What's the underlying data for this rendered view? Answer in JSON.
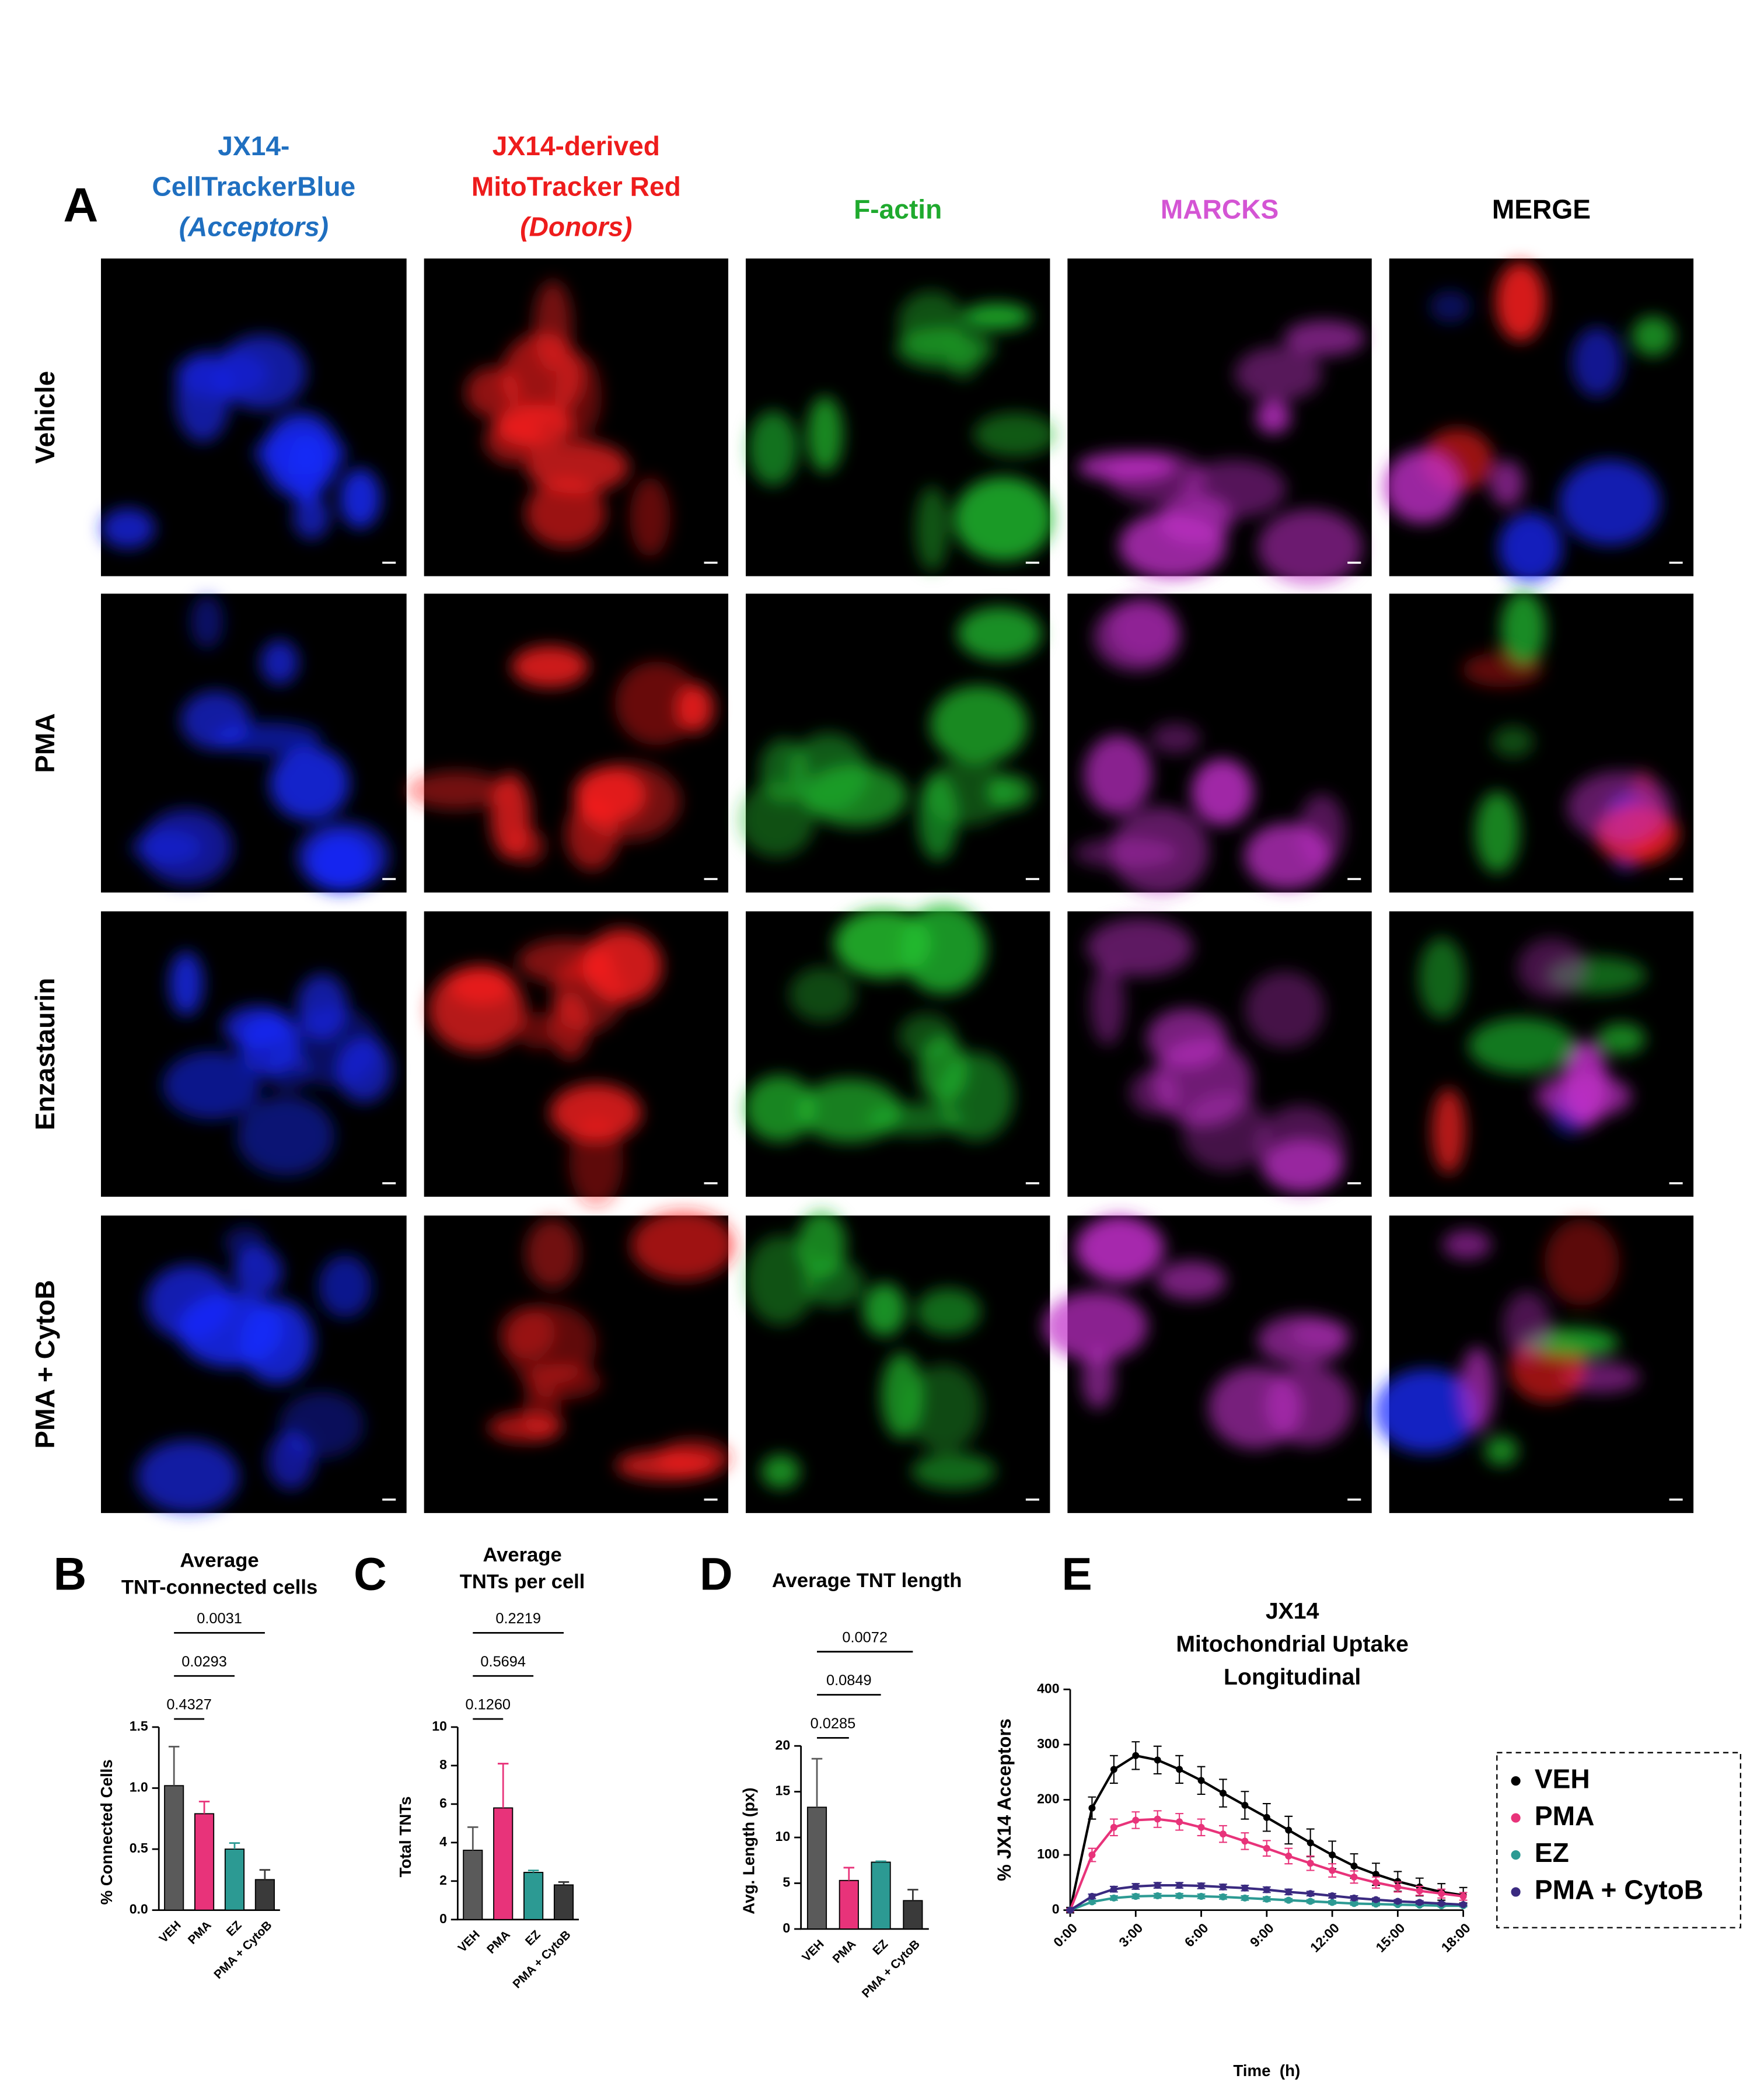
{
  "panel_a": {
    "label": "A",
    "columns": [
      [
        "JX14-",
        "CellTrackerBlue",
        "(Acceptors)"
      ],
      [
        "JX14-derived",
        "MitoTracker Red",
        "(Donors)"
      ],
      [
        "F-actin"
      ],
      [
        "MARCKS"
      ],
      [
        "MERGE"
      ]
    ],
    "column_colors": [
      "#1f6fc0",
      "#ee1c1c",
      "#1faa2e",
      "#d455d4",
      "#000000"
    ],
    "rows": [
      "Vehicle",
      "PMA",
      "Enzastaurin",
      "PMA + CytoB"
    ]
  },
  "chart_data": [
    {
      "type": "bar",
      "panel_label": "B",
      "title": [
        "Average",
        "TNT-connected cells"
      ],
      "y_label": "% Connected Cells",
      "categories": [
        "VEH",
        "PMA",
        "EZ",
        "PMA + CytoB"
      ],
      "values": [
        1.02,
        0.79,
        0.5,
        0.25
      ],
      "errors": [
        0.32,
        0.1,
        0.05,
        0.08
      ],
      "colors": [
        "#5a5a5a",
        "#e8337a",
        "#2c9a93",
        "#3a3a3a"
      ],
      "ylim": [
        0,
        1.5
      ],
      "yticks": [
        {
          "value": 0,
          "label": "0.0"
        },
        {
          "value": 0.5,
          "label": "0.5"
        },
        {
          "value": 1,
          "label": "1.0"
        },
        {
          "value": 1.5,
          "label": "1.5"
        }
      ],
      "annotations": [
        "0.4327",
        "0.0293",
        "0.0031"
      ]
    },
    {
      "type": "bar",
      "panel_label": "C",
      "title": [
        "Average",
        "TNTs per cell"
      ],
      "y_label": "Total TNTs",
      "categories": [
        "VEH",
        "PMA",
        "EZ",
        "PMA + CytoB"
      ],
      "values": [
        3.6,
        5.8,
        2.45,
        1.8
      ],
      "errors": [
        1.2,
        2.3,
        0.1,
        0.15
      ],
      "colors": [
        "#5a5a5a",
        "#e8337a",
        "#2c9a93",
        "#3a3a3a"
      ],
      "ylim": [
        0,
        10
      ],
      "yticks": [
        0,
        2,
        4,
        6,
        8,
        10
      ],
      "annotations": [
        "0.1260",
        "0.5694",
        "0.2219"
      ]
    },
    {
      "type": "bar",
      "panel_label": "D",
      "title": [
        "Average TNT length"
      ],
      "y_label": "Avg. Length (px)",
      "categories": [
        "VEH",
        "PMA",
        "EZ",
        "PMA + CytoB"
      ],
      "values": [
        13.3,
        5.3,
        7.3,
        3.1
      ],
      "errors": [
        5.3,
        1.4,
        0.1,
        1.2
      ],
      "colors": [
        "#5a5a5a",
        "#e8337a",
        "#2c9a93",
        "#3a3a3a"
      ],
      "ylim": [
        0,
        20
      ],
      "yticks": [
        0,
        5,
        10,
        15,
        20
      ],
      "annotations": [
        "0.0285",
        "0.0849",
        "0.0072"
      ]
    },
    {
      "type": "line",
      "panel_label": "E",
      "title": [
        "JX14",
        "Mitochondrial Uptake",
        "Longitudinal"
      ],
      "x_label": "Time  (h)",
      "y_label": "% JX14 Acceptors",
      "x": [
        0,
        1,
        2,
        3,
        4,
        5,
        6,
        7,
        8,
        9,
        10,
        11,
        12,
        13,
        14,
        15,
        16,
        17,
        18
      ],
      "series": [
        {
          "name": "VEH",
          "color": "#000000",
          "values": [
            0,
            185,
            255,
            280,
            272,
            255,
            235,
            212,
            190,
            168,
            145,
            122,
            100,
            80,
            65,
            52,
            42,
            33,
            27
          ],
          "errors": [
            5,
            20,
            25,
            25,
            25,
            25,
            25,
            25,
            25,
            25,
            25,
            25,
            25,
            22,
            20,
            18,
            16,
            15,
            14
          ]
        },
        {
          "name": "PMA",
          "color": "#e8337a",
          "values": [
            0,
            100,
            150,
            163,
            165,
            160,
            150,
            138,
            125,
            112,
            98,
            85,
            72,
            60,
            50,
            42,
            35,
            30,
            25
          ],
          "errors": [
            3,
            12,
            15,
            15,
            15,
            15,
            15,
            15,
            15,
            14,
            14,
            13,
            12,
            11,
            10,
            9,
            8,
            8,
            7
          ]
        },
        {
          "name": "EZ",
          "color": "#2c9a93",
          "values": [
            0,
            15,
            22,
            25,
            26,
            26,
            25,
            24,
            22,
            20,
            18,
            16,
            14,
            12,
            11,
            10,
            9,
            8,
            8
          ],
          "errors": [
            1,
            3,
            4,
            4,
            4,
            4,
            4,
            4,
            4,
            4,
            3,
            3,
            3,
            3,
            3,
            2,
            2,
            2,
            2
          ]
        },
        {
          "name": "PMA + CytoB",
          "color": "#3a2a80",
          "values": [
            0,
            25,
            38,
            43,
            45,
            45,
            44,
            42,
            40,
            37,
            33,
            30,
            26,
            22,
            19,
            16,
            14,
            12,
            10
          ],
          "errors": [
            1,
            4,
            5,
            5,
            5,
            5,
            5,
            5,
            5,
            5,
            5,
            4,
            4,
            4,
            3,
            3,
            3,
            2,
            2
          ]
        }
      ],
      "xlim": [
        0,
        18
      ],
      "xticks": [
        {
          "value": 0,
          "label": "0:00"
        },
        {
          "value": 3,
          "label": "3:00"
        },
        {
          "value": 6,
          "label": "6:00"
        },
        {
          "value": 9,
          "label": "9:00"
        },
        {
          "value": 12,
          "label": "12:00"
        },
        {
          "value": 15,
          "label": "15:00"
        },
        {
          "value": 18,
          "label": "18:00"
        }
      ],
      "ylim": [
        0,
        400
      ],
      "yticks": [
        0,
        100,
        200,
        300,
        400
      ],
      "legend": "outside-right"
    }
  ]
}
